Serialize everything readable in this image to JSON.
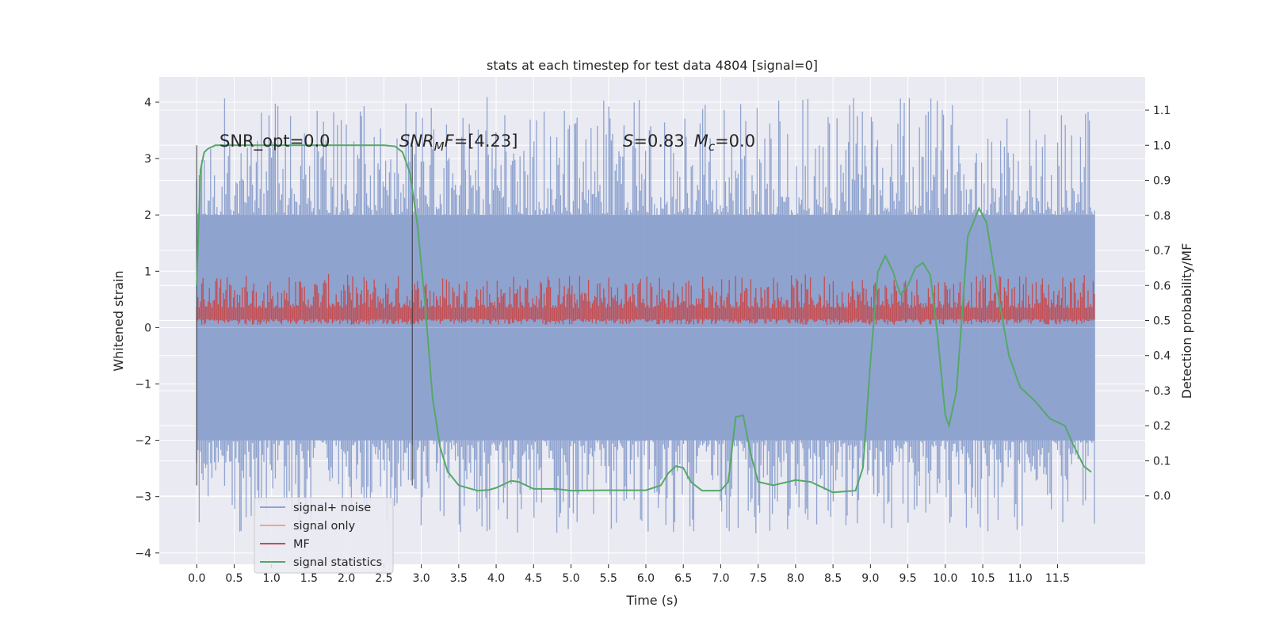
{
  "chart_data": {
    "type": "line",
    "title": "stats at each timestep for test data 4804 [signal=0]",
    "xlabel": "Time (s)",
    "ylabel": "Whitened strain",
    "ylabel_right": "Detection probability/MF",
    "xlim": [
      -0.5,
      12.67
    ],
    "ylim": [
      -4.2,
      4.45
    ],
    "ylim_right": [
      -0.195,
      1.195
    ],
    "x_ticks": [
      "0.0",
      "0.5",
      "1.0",
      "1.5",
      "2.0",
      "2.5",
      "3.0",
      "3.5",
      "4.0",
      "4.5",
      "5.0",
      "5.5",
      "6.0",
      "6.5",
      "7.0",
      "7.5",
      "8.0",
      "8.5",
      "9.0",
      "9.5",
      "10.0",
      "10.5",
      "11.0",
      "11.5"
    ],
    "y_ticks": [
      "4",
      "3",
      "2",
      "1",
      "0",
      "−1",
      "−2",
      "−3",
      "−4"
    ],
    "y_ticks_right": [
      "1.1",
      "1.0",
      "0.9",
      "0.8",
      "0.7",
      "0.6",
      "0.5",
      "0.4",
      "0.3",
      "0.2",
      "0.1",
      "0.0"
    ],
    "grid": true,
    "legend_position": "lower-left",
    "annotations": {
      "snr_opt": "SNR_opt=0.0",
      "snr_mf_sym": "SNR",
      "snr_mf_sub": "M",
      "snr_mf_sym2": "F",
      "snr_mf_val": "=[4.23]",
      "s_sym": "S",
      "s_val": "=0.83",
      "mc_sym": "M",
      "mc_sub": "c",
      "mc_val": "=0.0"
    },
    "vlines": [
      0.0,
      2.88
    ],
    "noise_band": {
      "x_range": [
        0.0,
        12.0
      ],
      "core_range": [
        -2.0,
        2.0
      ],
      "peak_max": 4.1,
      "peak_min": -3.65
    },
    "series": [
      {
        "name": "signal+ noise",
        "color": "#8fa3cf"
      },
      {
        "name": "signal only",
        "color": "#e8a98c"
      },
      {
        "name": "MF",
        "color": "#c44e52",
        "band": [
          0.05,
          0.95
        ]
      },
      {
        "name": "signal statistics",
        "color": "#55a868",
        "x": [
          0.0,
          0.05,
          0.1,
          0.15,
          0.25,
          0.5,
          1.0,
          1.5,
          2.0,
          2.5,
          2.65,
          2.75,
          2.85,
          2.95,
          3.05,
          3.15,
          3.25,
          3.35,
          3.5,
          3.75,
          3.9,
          4.0,
          4.1,
          4.2,
          4.3,
          4.5,
          4.8,
          5.0,
          5.5,
          6.0,
          6.2,
          6.3,
          6.4,
          6.5,
          6.6,
          6.75,
          7.0,
          7.1,
          7.2,
          7.3,
          7.4,
          7.5,
          7.7,
          7.9,
          8.0,
          8.2,
          8.5,
          8.8,
          8.9,
          9.0,
          9.1,
          9.2,
          9.3,
          9.4,
          9.5,
          9.6,
          9.7,
          9.8,
          9.9,
          10.0,
          10.05,
          10.15,
          10.3,
          10.45,
          10.55,
          10.7,
          10.85,
          11.0,
          11.2,
          11.4,
          11.6,
          11.7,
          11.85,
          11.95
        ],
        "values": [
          0.6,
          0.93,
          0.98,
          0.99,
          1.0,
          1.0,
          1.0,
          1.0,
          1.0,
          1.0,
          0.997,
          0.98,
          0.92,
          0.77,
          0.55,
          0.28,
          0.14,
          0.07,
          0.03,
          0.015,
          0.017,
          0.023,
          0.033,
          0.043,
          0.04,
          0.02,
          0.02,
          0.015,
          0.016,
          0.016,
          0.03,
          0.065,
          0.085,
          0.08,
          0.04,
          0.015,
          0.015,
          0.04,
          0.225,
          0.23,
          0.12,
          0.04,
          0.03,
          0.04,
          0.045,
          0.04,
          0.01,
          0.015,
          0.08,
          0.38,
          0.64,
          0.685,
          0.64,
          0.575,
          0.6,
          0.65,
          0.665,
          0.63,
          0.45,
          0.23,
          0.2,
          0.3,
          0.74,
          0.82,
          0.78,
          0.58,
          0.4,
          0.31,
          0.27,
          0.22,
          0.2,
          0.15,
          0.085,
          0.068
        ]
      }
    ]
  }
}
